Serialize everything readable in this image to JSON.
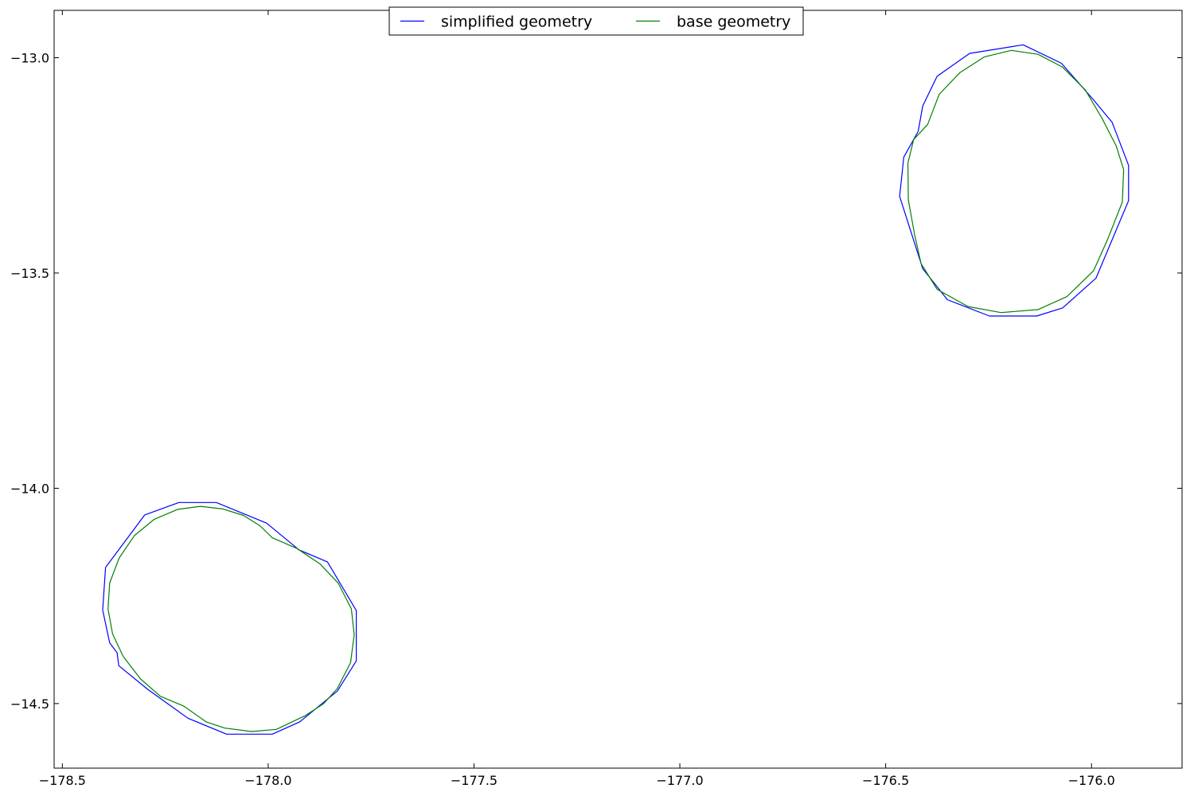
{
  "chart_data": {
    "type": "line",
    "title": "",
    "xlabel": "",
    "ylabel": "",
    "xlim": [
      -178.52,
      -175.78
    ],
    "ylim": [
      -14.65,
      -12.89
    ],
    "grid": false,
    "legend_placement": "upper-center",
    "x_ticks": [
      {
        "value": -178.5,
        "label": "−178.5"
      },
      {
        "value": -178.0,
        "label": "−178.0"
      },
      {
        "value": -177.5,
        "label": "−177.5"
      },
      {
        "value": -177.0,
        "label": "−177.0"
      },
      {
        "value": -176.5,
        "label": "−176.5"
      },
      {
        "value": -176.0,
        "label": "−176.0"
      }
    ],
    "y_ticks": [
      {
        "value": -13.0,
        "label": "−13.0"
      },
      {
        "value": -13.5,
        "label": "−13.5"
      },
      {
        "value": -14.0,
        "label": "−14.0"
      },
      {
        "value": -14.5,
        "label": "−14.5"
      }
    ],
    "series": [
      {
        "name": "simplified geometry",
        "color": "#0000ff",
        "parts": [
          [
            [
              -178.395,
              -14.184
            ],
            [
              -178.402,
              -14.283
            ],
            [
              -178.385,
              -14.359
            ],
            [
              -178.367,
              -14.382
            ],
            [
              -178.363,
              -14.412
            ],
            [
              -178.291,
              -14.468
            ],
            [
              -178.195,
              -14.534
            ],
            [
              -178.101,
              -14.571
            ],
            [
              -177.99,
              -14.571
            ],
            [
              -177.924,
              -14.543
            ],
            [
              -177.832,
              -14.471
            ],
            [
              -177.786,
              -14.401
            ],
            [
              -177.786,
              -14.284
            ],
            [
              -177.856,
              -14.171
            ],
            [
              -177.925,
              -14.143
            ],
            [
              -178.004,
              -14.081
            ],
            [
              -178.126,
              -14.033
            ],
            [
              -178.217,
              -14.033
            ],
            [
              -178.3,
              -14.062
            ],
            [
              -178.395,
              -14.184
            ]
          ],
          [
            [
              -176.375,
              -13.043
            ],
            [
              -176.296,
              -12.99
            ],
            [
              -176.166,
              -12.97
            ],
            [
              -176.073,
              -13.013
            ],
            [
              -175.995,
              -13.098
            ],
            [
              -175.95,
              -13.15
            ],
            [
              -175.91,
              -13.25
            ],
            [
              -175.91,
              -13.332
            ],
            [
              -175.989,
              -13.512
            ],
            [
              -176.07,
              -13.581
            ],
            [
              -176.133,
              -13.6
            ],
            [
              -176.248,
              -13.6
            ],
            [
              -176.35,
              -13.562
            ],
            [
              -176.41,
              -13.49
            ],
            [
              -176.466,
              -13.322
            ],
            [
              -176.456,
              -13.231
            ],
            [
              -176.421,
              -13.171
            ],
            [
              -176.41,
              -13.112
            ],
            [
              -176.375,
              -13.043
            ]
          ]
        ]
      },
      {
        "name": "base geometry",
        "color": "#008000",
        "parts": [
          [
            [
              -178.362,
              -14.162
            ],
            [
              -178.325,
              -14.11
            ],
            [
              -178.277,
              -14.072
            ],
            [
              -178.22,
              -14.049
            ],
            [
              -178.165,
              -14.042
            ],
            [
              -178.11,
              -14.048
            ],
            [
              -178.06,
              -14.063
            ],
            [
              -178.02,
              -14.087
            ],
            [
              -177.99,
              -14.115
            ],
            [
              -177.93,
              -14.14
            ],
            [
              -177.875,
              -14.175
            ],
            [
              -177.83,
              -14.22
            ],
            [
              -177.798,
              -14.28
            ],
            [
              -177.791,
              -14.34
            ],
            [
              -177.8,
              -14.405
            ],
            [
              -177.832,
              -14.465
            ],
            [
              -177.865,
              -14.5
            ],
            [
              -177.91,
              -14.528
            ],
            [
              -177.98,
              -14.56
            ],
            [
              -178.04,
              -14.565
            ],
            [
              -178.105,
              -14.557
            ],
            [
              -178.15,
              -14.543
            ],
            [
              -178.205,
              -14.506
            ],
            [
              -178.262,
              -14.483
            ],
            [
              -178.31,
              -14.443
            ],
            [
              -178.352,
              -14.391
            ],
            [
              -178.378,
              -14.338
            ],
            [
              -178.389,
              -14.28
            ],
            [
              -178.385,
              -14.22
            ],
            [
              -178.362,
              -14.162
            ]
          ],
          [
            [
              -176.398,
              -13.155
            ],
            [
              -176.37,
              -13.085
            ],
            [
              -176.32,
              -13.035
            ],
            [
              -176.26,
              -12.998
            ],
            [
              -176.195,
              -12.983
            ],
            [
              -176.13,
              -12.992
            ],
            [
              -176.07,
              -13.022
            ],
            [
              -176.015,
              -13.075
            ],
            [
              -175.975,
              -13.14
            ],
            [
              -175.94,
              -13.205
            ],
            [
              -175.922,
              -13.26
            ],
            [
              -175.925,
              -13.335
            ],
            [
              -175.96,
              -13.42
            ],
            [
              -175.995,
              -13.495
            ],
            [
              -176.06,
              -13.555
            ],
            [
              -176.13,
              -13.585
            ],
            [
              -176.22,
              -13.592
            ],
            [
              -176.3,
              -13.578
            ],
            [
              -176.375,
              -13.538
            ],
            [
              -176.414,
              -13.478
            ],
            [
              -176.43,
              -13.41
            ],
            [
              -176.445,
              -13.33
            ],
            [
              -176.446,
              -13.245
            ],
            [
              -176.432,
              -13.19
            ],
            [
              -176.398,
              -13.155
            ]
          ]
        ]
      }
    ]
  }
}
